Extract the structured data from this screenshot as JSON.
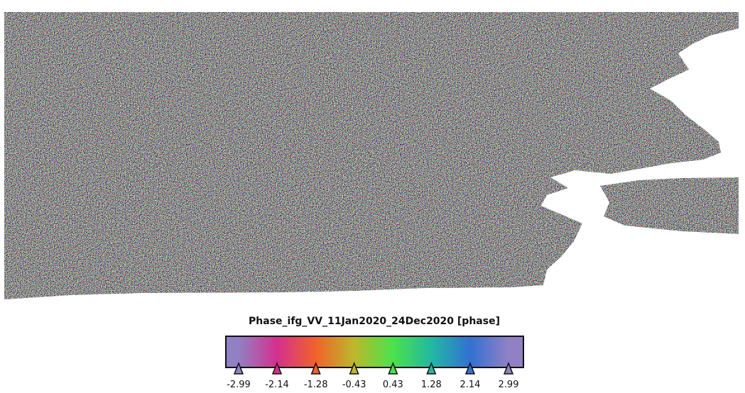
{
  "legend": {
    "title": "Phase_ifg_VV_11Jan2020_24Dec2020 [phase]",
    "ticks": [
      {
        "value": -2.99,
        "color": "#9180c4"
      },
      {
        "value": -2.14,
        "color": "#d4308e"
      },
      {
        "value": -1.28,
        "color": "#f0622c"
      },
      {
        "value": -0.43,
        "color": "#bdb82a"
      },
      {
        "value": 0.43,
        "color": "#4be24b"
      },
      {
        "value": 1.28,
        "color": "#22b8a2"
      },
      {
        "value": 2.14,
        "color": "#3271d2"
      },
      {
        "value": 2.99,
        "color": "#9180c4"
      }
    ]
  }
}
